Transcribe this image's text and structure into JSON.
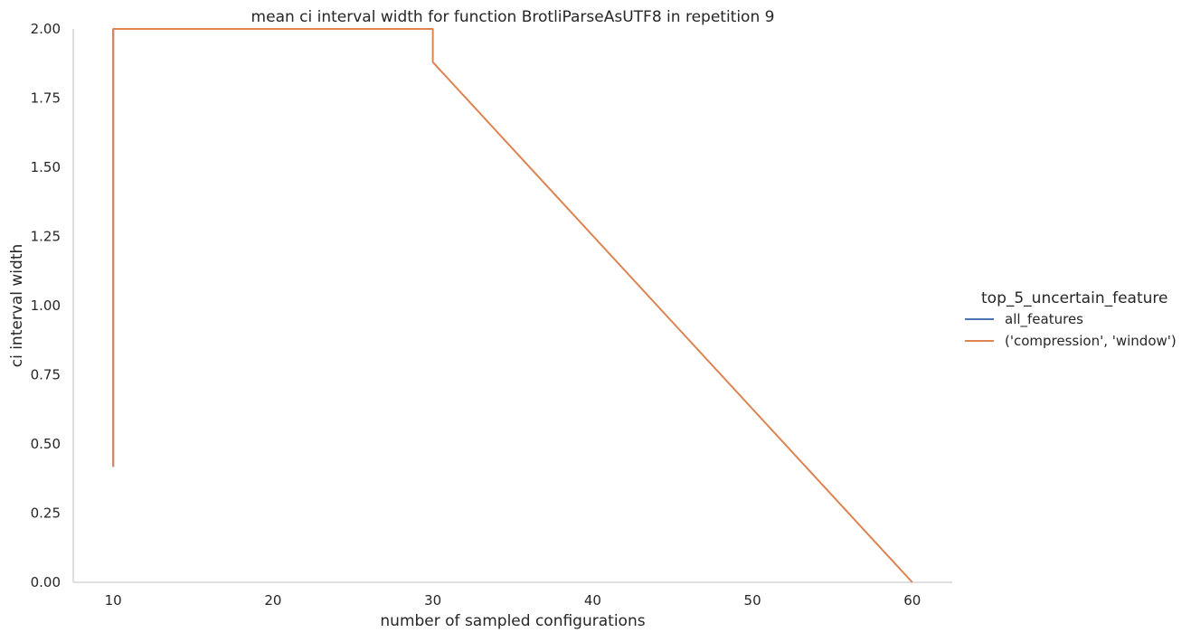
{
  "chart_data": {
    "type": "line",
    "title": "mean ci interval width for function BrotliParseAsUTF8 in repetition 9",
    "xlabel": "number of sampled configurations",
    "ylabel": "ci interval width",
    "xlim": [
      7.5,
      62.5
    ],
    "ylim": [
      0,
      2
    ],
    "x_ticks": [
      10,
      20,
      30,
      40,
      50,
      60
    ],
    "y_ticks": [
      0,
      0.25,
      0.5,
      0.75,
      1.0,
      1.25,
      1.5,
      1.75,
      2.0
    ],
    "x_tick_labels": [
      "10",
      "20",
      "30",
      "40",
      "50",
      "60"
    ],
    "y_tick_labels": [
      "0.00",
      "0.25",
      "0.50",
      "0.75",
      "1.00",
      "1.25",
      "1.50",
      "1.75",
      "2.00"
    ],
    "grid": false,
    "legend_title": "top_5_uncertain_feature",
    "legend_placement": "outside-right",
    "series": [
      {
        "name": "all_features",
        "color": "#4c72b0",
        "points": [
          [
            10,
            2.0
          ],
          [
            10,
            0.42
          ],
          [
            10,
            2.0
          ]
        ]
      },
      {
        "name": "('compression', 'window')",
        "color": "#dd8452",
        "points": [
          [
            10,
            2.0
          ],
          [
            10,
            0.42
          ],
          [
            10,
            2.0
          ],
          [
            30,
            2.0
          ],
          [
            30,
            1.88
          ],
          [
            60,
            0.0
          ]
        ]
      }
    ]
  }
}
